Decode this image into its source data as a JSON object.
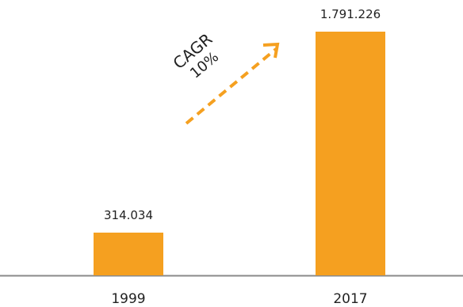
{
  "chart_data": {
    "type": "bar",
    "categories": [
      "1999",
      "2017"
    ],
    "values": [
      314034,
      1791226
    ],
    "value_labels": [
      "314.034",
      "1.791.226"
    ],
    "title": "",
    "xlabel": "",
    "ylabel": "",
    "ylim": [
      0,
      1900000
    ],
    "grid": false,
    "legend": "none",
    "annotation": {
      "line1": "CAGR",
      "line2": "10%"
    },
    "colors": {
      "bar": "#F5A020",
      "arrow": "#F5A020",
      "axis": "#8a8a8a",
      "text": "#222222"
    }
  }
}
